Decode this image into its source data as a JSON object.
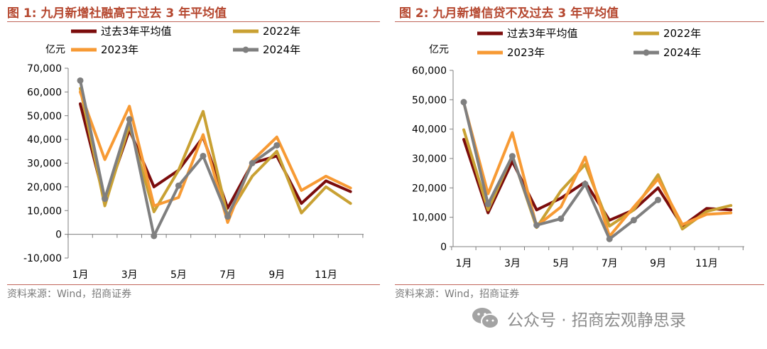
{
  "watermark": "公众号 · 招商宏观静思录",
  "panels": [
    {
      "title": "图 1:  九月新增社融高于过去 3 年平均值",
      "source": "资料来源：Wind，招商证券",
      "chart_data": {
        "type": "line",
        "title": "九月新增社融高于过去 3 年平均值",
        "ylabel": "亿元",
        "ylim": [
          -10000,
          70000
        ],
        "yticks": [
          -10000,
          0,
          10000,
          20000,
          30000,
          40000,
          50000,
          60000,
          70000
        ],
        "ytick_labels": [
          "-10,000",
          "0",
          "10,000",
          "20,000",
          "30,000",
          "40,000",
          "50,000",
          "60,000",
          "70,000"
        ],
        "months": [
          1,
          2,
          3,
          4,
          5,
          6,
          7,
          8,
          9,
          10,
          11,
          12
        ],
        "xtick_labels": [
          "1月",
          "3月",
          "5月",
          "7月",
          "9月",
          "11月"
        ],
        "xtick_months": [
          1,
          3,
          5,
          7,
          9,
          11
        ],
        "legend_columns": 2,
        "series": [
          {
            "name": "过去3年平均值",
            "color": "#7b0c0c",
            "marker": false,
            "values": [
              55000,
              14000,
              44000,
              20000,
              27000,
              41000,
              11000,
              30000,
              33000,
              13000,
              22500,
              18000
            ]
          },
          {
            "name": "2022年",
            "color": "#c9a133",
            "marker": false,
            "values": [
              61500,
              12000,
              46000,
              9500,
              27000,
              51800,
              7500,
              24500,
              35000,
              9000,
              20000,
              13000
            ]
          },
          {
            "name": "2023年",
            "color": "#f79a34",
            "marker": false,
            "values": [
              60000,
              31500,
              54000,
              12000,
              15500,
              42000,
              5000,
              31000,
              41000,
              18500,
              24500,
              19500
            ]
          },
          {
            "name": "2024年",
            "color": "#7f7f7f",
            "marker": true,
            "values": [
              64800,
              15000,
              48500,
              -700,
              20500,
              33000,
              7500,
              30000,
              37500
            ]
          }
        ]
      }
    },
    {
      "title": "图 2:  九月新增信贷不及过去 3 年平均值",
      "source": "资料来源：Wind，招商证券",
      "chart_data": {
        "type": "line",
        "title": "九月新增信贷不及过去 3 年平均值",
        "ylabel": "亿元",
        "ylim": [
          0,
          60000
        ],
        "yticks": [
          0,
          10000,
          20000,
          30000,
          40000,
          50000,
          60000
        ],
        "ytick_labels": [
          "0",
          "10,000",
          "20,000",
          "30,000",
          "40,000",
          "50,000",
          "60,000"
        ],
        "months": [
          1,
          2,
          3,
          4,
          5,
          6,
          7,
          8,
          9,
          10,
          11,
          12
        ],
        "xtick_labels": [
          "1月",
          "3月",
          "5月",
          "7月",
          "9月",
          "11月"
        ],
        "xtick_months": [
          1,
          3,
          5,
          7,
          9,
          11
        ],
        "legend_columns": 2,
        "series": [
          {
            "name": "过去3年平均值",
            "color": "#7b0c0c",
            "marker": false,
            "values": [
              36500,
              11500,
              29000,
              12500,
              16500,
              22000,
              9000,
              12500,
              20000,
              7000,
              13000,
              12500
            ]
          },
          {
            "name": "2022年",
            "color": "#c9a133",
            "marker": false,
            "values": [
              39800,
              12500,
              31000,
              6500,
              19000,
              28000,
              7000,
              12500,
              24500,
              6000,
              12000,
              14000
            ]
          },
          {
            "name": "2023年",
            "color": "#f79a34",
            "marker": false,
            "values": [
              49000,
              18000,
              38800,
              7000,
              13500,
              30500,
              3500,
              13500,
              23000,
              7500,
              11000,
              11500
            ]
          },
          {
            "name": "2024年",
            "color": "#7f7f7f",
            "marker": true,
            "values": [
              49200,
              14500,
              30800,
              7300,
              9500,
              21300,
              2600,
              9000,
              15900
            ]
          }
        ]
      }
    }
  ]
}
